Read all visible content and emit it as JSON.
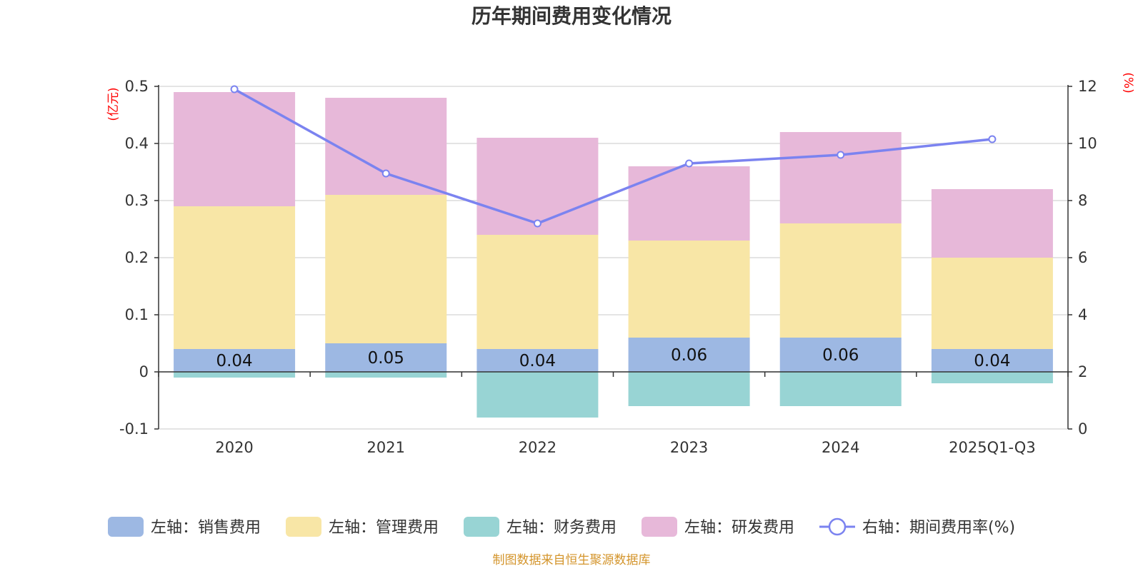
{
  "chart_data": {
    "type": "bar",
    "title": "历年期间费用变化情况",
    "categories": [
      "2020",
      "2021",
      "2022",
      "2023",
      "2024",
      "2025Q1-Q3"
    ],
    "series": [
      {
        "name": "左轴：销售费用",
        "axis": "left",
        "color": "#9db8e3",
        "values": [
          0.04,
          0.05,
          0.04,
          0.06,
          0.06,
          0.04
        ],
        "labels": [
          "0.04",
          "0.05",
          "0.04",
          "0.06",
          "0.06",
          "0.04"
        ]
      },
      {
        "name": "左轴：管理费用",
        "axis": "left",
        "color": "#f8e6a6",
        "values": [
          0.25,
          0.26,
          0.2,
          0.17,
          0.2,
          0.16
        ]
      },
      {
        "name": "左轴：财务费用",
        "axis": "left",
        "color": "#98d4d4",
        "values": [
          -0.01,
          -0.01,
          -0.08,
          -0.06,
          -0.06,
          -0.02
        ]
      },
      {
        "name": "左轴：研发费用",
        "axis": "left",
        "color": "#e7b8d9",
        "values": [
          0.2,
          0.17,
          0.17,
          0.13,
          0.16,
          0.12
        ]
      }
    ],
    "line": {
      "name": "右轴：期间费用率(%)",
      "axis": "right",
      "color": "#7b83f0",
      "values": [
        11.9,
        8.95,
        7.2,
        9.3,
        9.6,
        10.15
      ]
    },
    "left_axis": {
      "unit": "(亿元)",
      "ylim": [
        -0.1,
        0.5
      ],
      "ticks": [
        -0.1,
        0,
        0.1,
        0.2,
        0.3,
        0.4,
        0.5
      ],
      "tick_labels": [
        "-0.1",
        "0",
        "0.1",
        "0.2",
        "0.3",
        "0.4",
        "0.5"
      ]
    },
    "right_axis": {
      "unit": "(%)",
      "ylim": [
        0,
        12
      ],
      "ticks": [
        0,
        2,
        4,
        6,
        8,
        10,
        12
      ],
      "tick_labels": [
        "0",
        "2",
        "4",
        "6",
        "8",
        "10",
        "12"
      ]
    },
    "grid": true,
    "legend_position": "bottom"
  },
  "footer": {
    "source": "制图数据来自恒生聚源数据库"
  }
}
